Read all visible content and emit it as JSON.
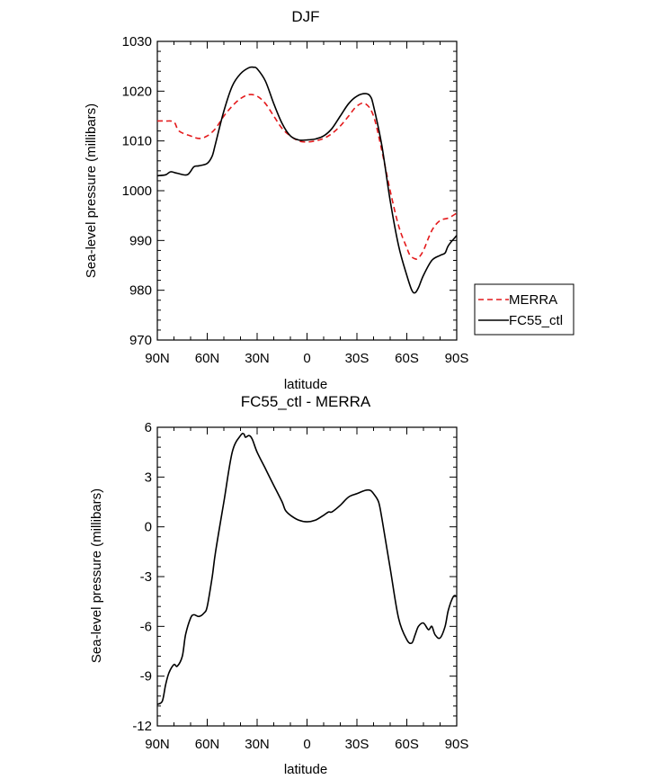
{
  "chart_data": [
    {
      "type": "line",
      "title": "DJF",
      "xlabel": "latitude",
      "ylabel": "Sea-level pressure (millibars)",
      "x_tick_labels": [
        "90N",
        "60N",
        "30N",
        "0",
        "30S",
        "60S",
        "90S"
      ],
      "y_tick_labels": [
        "970",
        "980",
        "990",
        "1000",
        "1010",
        "1020",
        "1030"
      ],
      "xlim": [
        90,
        -90
      ],
      "ylim": [
        970,
        1030
      ],
      "legend_position": "right",
      "series": [
        {
          "name": "MERRA",
          "color": "#e41a1c",
          "dash": "dashed",
          "x": [
            90,
            85,
            80,
            77,
            70,
            65,
            60,
            55,
            50,
            45,
            40,
            35,
            30,
            25,
            20,
            15,
            10,
            5,
            0,
            -5,
            -10,
            -15,
            -20,
            -25,
            -30,
            -35,
            -40,
            -45,
            -50,
            -55,
            -60,
            -62,
            -65,
            -67,
            -70,
            -75,
            -80,
            -85,
            -90
          ],
          "y": [
            1014,
            1014,
            1013.8,
            1012,
            1011,
            1010.5,
            1011,
            1012.5,
            1015,
            1017,
            1018.5,
            1019.3,
            1019,
            1017.5,
            1015,
            1012.5,
            1011,
            1010,
            1009.8,
            1010,
            1010.5,
            1011.5,
            1013,
            1015,
            1017,
            1017.5,
            1015,
            1008,
            1000,
            993,
            988.5,
            987,
            986.3,
            986.5,
            988,
            992,
            994,
            994.5,
            995.5
          ]
        },
        {
          "name": "FC55_ctl",
          "color": "#000000",
          "dash": "solid",
          "x": [
            90,
            85,
            82,
            78,
            72,
            68,
            65,
            60,
            57,
            55,
            50,
            45,
            40,
            35,
            32,
            30,
            25,
            20,
            15,
            10,
            5,
            0,
            -5,
            -10,
            -15,
            -20,
            -25,
            -30,
            -35,
            -38,
            -40,
            -45,
            -50,
            -55,
            -60,
            -63,
            -65,
            -67,
            -70,
            -75,
            -80,
            -83,
            -85,
            -90
          ],
          "y": [
            1003,
            1003.2,
            1003.8,
            1003.5,
            1003.2,
            1004.8,
            1005,
            1005.5,
            1007,
            1009.5,
            1016,
            1021,
            1023.5,
            1024.7,
            1024.8,
            1024.5,
            1022,
            1017.5,
            1013.5,
            1011,
            1010.2,
            1010.2,
            1010.4,
            1011,
            1012.5,
            1015,
            1017.5,
            1019,
            1019.5,
            1019,
            1017,
            1009,
            998,
            989,
            983,
            980,
            979.5,
            980.5,
            983,
            986,
            987,
            987.5,
            989,
            991
          ]
        }
      ]
    },
    {
      "type": "line",
      "title": "FC55_ctl - MERRA",
      "xlabel": "latitude",
      "ylabel": "Sea-level pressure (millibars)",
      "x_tick_labels": [
        "90N",
        "60N",
        "30N",
        "0",
        "30S",
        "60S",
        "90S"
      ],
      "y_tick_labels": [
        "-12",
        "-9",
        "-6",
        "-3",
        "0",
        "3",
        "6"
      ],
      "xlim": [
        90,
        -90
      ],
      "ylim": [
        -12,
        6
      ],
      "series": [
        {
          "color": "#000000",
          "dash": "solid",
          "x": [
            90,
            87,
            85,
            83,
            80,
            78,
            75,
            73,
            70,
            68,
            65,
            62,
            60,
            57,
            55,
            50,
            45,
            40,
            38,
            37,
            35,
            33,
            30,
            25,
            20,
            15,
            13,
            10,
            5,
            0,
            -5,
            -10,
            -13,
            -15,
            -20,
            -25,
            -30,
            -35,
            -38,
            -40,
            -43,
            -45,
            -50,
            -55,
            -60,
            -63,
            -65,
            -67,
            -70,
            -73,
            -75,
            -77,
            -80,
            -83,
            -85,
            -88,
            -90
          ],
          "y": [
            -10.7,
            -10.5,
            -9.5,
            -8.8,
            -8.3,
            -8.4,
            -7.8,
            -6.5,
            -5.5,
            -5.3,
            -5.4,
            -5.2,
            -4.8,
            -3,
            -1.5,
            1.5,
            4.5,
            5.5,
            5.6,
            5.4,
            5.5,
            5.3,
            4.5,
            3.5,
            2.5,
            1.5,
            1,
            0.7,
            0.4,
            0.3,
            0.4,
            0.7,
            0.9,
            0.9,
            1.3,
            1.8,
            2.0,
            2.2,
            2.2,
            2.0,
            1.5,
            0.5,
            -2.5,
            -5.5,
            -6.8,
            -7.0,
            -6.5,
            -6.0,
            -5.8,
            -6.2,
            -6.0,
            -6.5,
            -6.7,
            -6.0,
            -5.0,
            -4.2,
            -4.2
          ]
        }
      ]
    }
  ]
}
